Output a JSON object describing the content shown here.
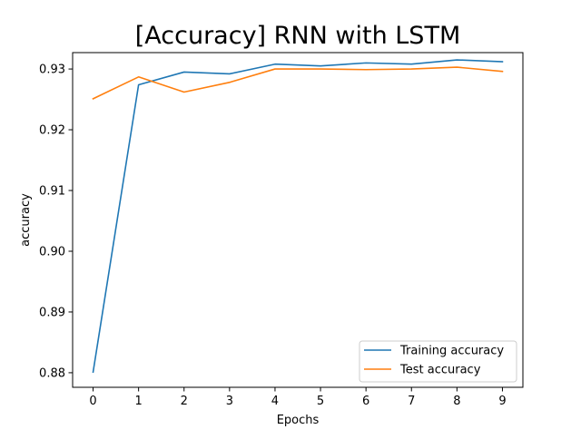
{
  "chart_data": {
    "type": "line",
    "title": "[Accuracy] RNN with LSTM",
    "xlabel": "Epochs",
    "ylabel": "accuracy",
    "x": [
      0,
      1,
      2,
      3,
      4,
      5,
      6,
      7,
      8,
      9
    ],
    "xticks": [
      "0",
      "1",
      "2",
      "3",
      "4",
      "5",
      "6",
      "7",
      "8",
      "9"
    ],
    "yticks": [
      "0.88",
      "0.89",
      "0.90",
      "0.91",
      "0.92",
      "0.93"
    ],
    "xlim": [
      -0.45,
      9.45
    ],
    "ylim": [
      0.8776,
      0.9327
    ],
    "grid": false,
    "legend_position": "lower-right",
    "series": [
      {
        "name": "Training accuracy",
        "color": "#1f77b4",
        "values": [
          0.8801,
          0.9274,
          0.9295,
          0.9292,
          0.9308,
          0.9305,
          0.931,
          0.9308,
          0.9315,
          0.9312
        ]
      },
      {
        "name": "Test accuracy",
        "color": "#ff7f0e",
        "values": [
          0.9251,
          0.9287,
          0.9262,
          0.9278,
          0.93,
          0.93,
          0.9299,
          0.93,
          0.9303,
          0.9296
        ]
      }
    ]
  }
}
